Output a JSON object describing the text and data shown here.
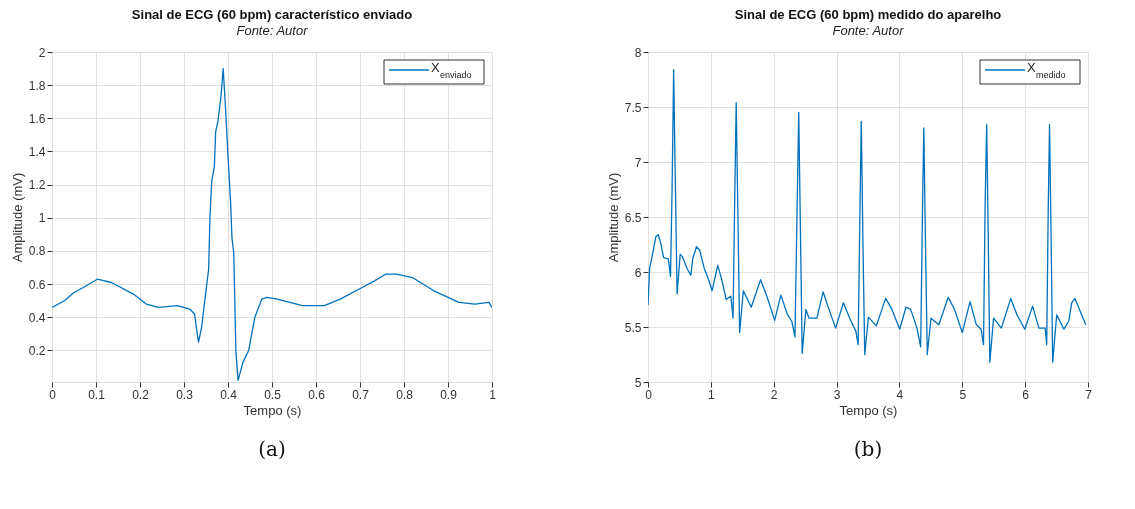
{
  "chart_data": [
    {
      "type": "line",
      "title": "Sinal de ECG (60 bpm) característico enviado",
      "subtitle": "Fonte: Autor",
      "xlabel": "Tempo (s)",
      "ylabel": "Amplitude (mV)",
      "annotations": [
        "(a)"
      ],
      "grid": true,
      "legend": "top right",
      "xlim": [
        0,
        1
      ],
      "ylim": [
        0.01,
        2
      ],
      "xticks": [
        0,
        0.1,
        0.2,
        0.3,
        0.4,
        0.5,
        0.6,
        0.7,
        0.8,
        0.9,
        1
      ],
      "yticks": [
        0.2,
        0.4,
        0.6,
        0.8,
        1,
        1.2,
        1.4,
        1.6,
        1.8,
        2
      ],
      "series": [
        {
          "name": "X$_{enviado}$",
          "color": "#0072bd",
          "x": [
            0,
            0.028,
            0.05,
            0.071,
            0.103,
            0.135,
            0.185,
            0.214,
            0.242,
            0.285,
            0.313,
            0.324,
            0.329,
            0.333,
            0.34,
            0.349,
            0.356,
            0.359,
            0.363,
            0.369,
            0.372,
            0.377,
            0.384,
            0.389,
            0.394,
            0.4,
            0.406,
            0.409,
            0.413,
            0.418,
            0.423,
            0.434,
            0.447,
            0.461,
            0.477,
            0.488,
            0.512,
            0.569,
            0.619,
            0.655,
            0.705,
            0.733,
            0.758,
            0.783,
            0.819,
            0.868,
            0.925,
            0.961,
            0.993,
            1.0
          ],
          "values": [
            0.46,
            0.5,
            0.55,
            0.58,
            0.63,
            0.61,
            0.54,
            0.48,
            0.46,
            0.47,
            0.45,
            0.42,
            0.32,
            0.25,
            0.34,
            0.54,
            0.69,
            1.01,
            1.22,
            1.31,
            1.52,
            1.58,
            1.73,
            1.9,
            1.68,
            1.37,
            1.09,
            0.88,
            0.79,
            0.19,
            0.02,
            0.13,
            0.2,
            0.4,
            0.51,
            0.52,
            0.51,
            0.47,
            0.47,
            0.51,
            0.58,
            0.62,
            0.66,
            0.66,
            0.64,
            0.56,
            0.49,
            0.48,
            0.49,
            0.46
          ]
        }
      ]
    },
    {
      "type": "line",
      "title": "Sinal de ECG (60 bpm) medido do aparelho",
      "subtitle": "Fonte: Autor",
      "xlabel": "Tempo (s)",
      "ylabel": "Amplitude (mV)",
      "annotations": [
        "(b)"
      ],
      "grid": true,
      "legend": "top right",
      "xlim": [
        0,
        7
      ],
      "ylim": [
        5,
        8
      ],
      "xticks": [
        0,
        1,
        2,
        3,
        4,
        5,
        6,
        7
      ],
      "yticks": [
        5,
        5.5,
        6,
        6.5,
        7,
        7.5,
        8
      ],
      "series": [
        {
          "name": "X$_{medido}$",
          "color": "#0072bd",
          "x": [
            0,
            0.025,
            0.075,
            0.124,
            0.164,
            0.199,
            0.249,
            0.323,
            0.358,
            0.383,
            0.408,
            0.433,
            0.463,
            0.512,
            0.547,
            0.622,
            0.682,
            0.711,
            0.771,
            0.821,
            0.896,
            0.97,
            1.02,
            1.109,
            1.169,
            1.244,
            1.318,
            1.353,
            1.378,
            1.403,
            1.428,
            1.458,
            1.517,
            1.642,
            1.791,
            1.891,
            2.015,
            2.114,
            2.214,
            2.289,
            2.338,
            2.373,
            2.398,
            2.423,
            2.453,
            2.512,
            2.562,
            2.687,
            2.786,
            2.861,
            2.985,
            3.109,
            3.209,
            3.308,
            3.343,
            3.373,
            3.393,
            3.418,
            3.448,
            3.507,
            3.632,
            3.781,
            3.881,
            4.005,
            4.104,
            4.179,
            4.279,
            4.338,
            4.368,
            4.388,
            4.413,
            4.443,
            4.502,
            4.627,
            4.776,
            4.876,
            5.0,
            5.124,
            5.224,
            5.299,
            5.338,
            5.363,
            5.388,
            5.413,
            5.438,
            5.498,
            5.622,
            5.771,
            5.871,
            5.995,
            6.119,
            6.219,
            6.318,
            6.343,
            6.368,
            6.388,
            6.413,
            6.438,
            6.502,
            6.617,
            6.692,
            6.741,
            6.791,
            6.965
          ],
          "values": [
            5.7,
            6.03,
            6.17,
            6.32,
            6.34,
            6.27,
            6.13,
            6.12,
            5.96,
            6.74,
            7.84,
            6.88,
            5.8,
            6.16,
            6.14,
            6.03,
            5.97,
            6.12,
            6.23,
            6.2,
            6.03,
            5.92,
            5.83,
            6.06,
            5.94,
            5.75,
            5.78,
            5.58,
            6.6,
            7.54,
            6.6,
            5.45,
            5.83,
            5.68,
            5.93,
            5.78,
            5.56,
            5.79,
            5.62,
            5.55,
            5.41,
            6.6,
            7.45,
            6.46,
            5.26,
            5.66,
            5.58,
            5.58,
            5.82,
            5.69,
            5.49,
            5.72,
            5.58,
            5.46,
            5.34,
            6.6,
            7.37,
            6.32,
            5.25,
            5.59,
            5.51,
            5.76,
            5.66,
            5.48,
            5.68,
            5.66,
            5.49,
            5.32,
            6.6,
            7.31,
            6.32,
            5.25,
            5.58,
            5.52,
            5.77,
            5.66,
            5.45,
            5.73,
            5.52,
            5.48,
            5.34,
            6.6,
            7.34,
            6.32,
            5.18,
            5.58,
            5.49,
            5.76,
            5.61,
            5.48,
            5.69,
            5.49,
            5.49,
            5.34,
            6.6,
            7.34,
            6.32,
            5.18,
            5.61,
            5.48,
            5.55,
            5.72,
            5.76,
            5.52
          ]
        }
      ]
    }
  ]
}
